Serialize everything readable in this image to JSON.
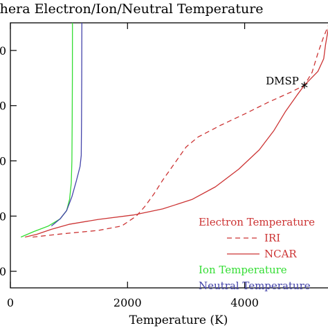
{
  "chart_data": {
    "type": "line",
    "title": "thera Electron/Ion/Neutral Temperature",
    "xlabel": "Temperature (K)",
    "ylabel": "",
    "xlim": [
      0,
      5600
    ],
    "ylim": [
      120,
      600
    ],
    "x_ticks": [
      {
        "value": 0,
        "label": "0"
      },
      {
        "value": 2000,
        "label": "2000"
      },
      {
        "value": 4000,
        "label": "4000"
      }
    ],
    "y_ticks": [
      {
        "value": 150,
        "label": "0"
      },
      {
        "value": 250,
        "label": "0"
      },
      {
        "value": 350,
        "label": "0"
      },
      {
        "value": 450,
        "label": "0"
      },
      {
        "value": 550,
        "label": "0"
      }
    ],
    "legend": {
      "placement": "bottom-right",
      "header": "Electron Temperature",
      "entries": [
        "IRI",
        "NCAR",
        "Ion Temperature",
        "Neutral Temperature"
      ]
    },
    "annotation": {
      "label": "DMSP",
      "x": 5020,
      "y": 487
    },
    "colors": {
      "electron": "#cc3333",
      "ion": "#33dd33",
      "neutral": "#4444aa",
      "axis": "#000000"
    },
    "series": [
      {
        "name": "IRI",
        "style": "dashed",
        "color": "#cc3333",
        "points": [
          [
            380,
            212
          ],
          [
            900,
            218
          ],
          [
            1500,
            224
          ],
          [
            1900,
            232
          ],
          [
            2150,
            250
          ],
          [
            2300,
            268
          ],
          [
            2450,
            290
          ],
          [
            2600,
            315
          ],
          [
            2800,
            345
          ],
          [
            3000,
            375
          ],
          [
            3200,
            393
          ],
          [
            3600,
            415
          ],
          [
            4000,
            435
          ],
          [
            4400,
            456
          ],
          [
            4800,
            475
          ],
          [
            5020,
            487
          ],
          [
            5150,
            510
          ],
          [
            5250,
            545
          ],
          [
            5350,
            575
          ],
          [
            5450,
            600
          ]
        ]
      },
      {
        "name": "NCAR",
        "style": "solid",
        "color": "#cc3333",
        "points": [
          [
            250,
            212
          ],
          [
            450,
            217
          ],
          [
            700,
            226
          ],
          [
            1000,
            235
          ],
          [
            1500,
            244
          ],
          [
            2100,
            252
          ],
          [
            2600,
            263
          ],
          [
            3100,
            280
          ],
          [
            3500,
            303
          ],
          [
            3900,
            335
          ],
          [
            4250,
            370
          ],
          [
            4500,
            405
          ],
          [
            4700,
            440
          ],
          [
            4900,
            470
          ],
          [
            5020,
            487
          ],
          [
            5250,
            512
          ],
          [
            5350,
            535
          ],
          [
            5380,
            560
          ],
          [
            5420,
            585
          ],
          [
            5450,
            600
          ]
        ]
      },
      {
        "name": "Ion Temperature",
        "style": "solid",
        "color": "#33dd33",
        "points": [
          [
            180,
            212
          ],
          [
            400,
            222
          ],
          [
            650,
            232
          ],
          [
            850,
            245
          ],
          [
            960,
            260
          ],
          [
            1010,
            280
          ],
          [
            1040,
            310
          ],
          [
            1050,
            350
          ],
          [
            1055,
            420
          ],
          [
            1058,
            500
          ],
          [
            1060,
            600
          ]
        ]
      },
      {
        "name": "Neutral Temperature",
        "style": "solid",
        "color": "#4444aa",
        "points": [
          [
            700,
            232
          ],
          [
            850,
            245
          ],
          [
            960,
            260
          ],
          [
            1050,
            285
          ],
          [
            1130,
            315
          ],
          [
            1190,
            340
          ],
          [
            1210,
            360
          ],
          [
            1215,
            420
          ],
          [
            1218,
            500
          ],
          [
            1220,
            600
          ]
        ]
      }
    ]
  }
}
